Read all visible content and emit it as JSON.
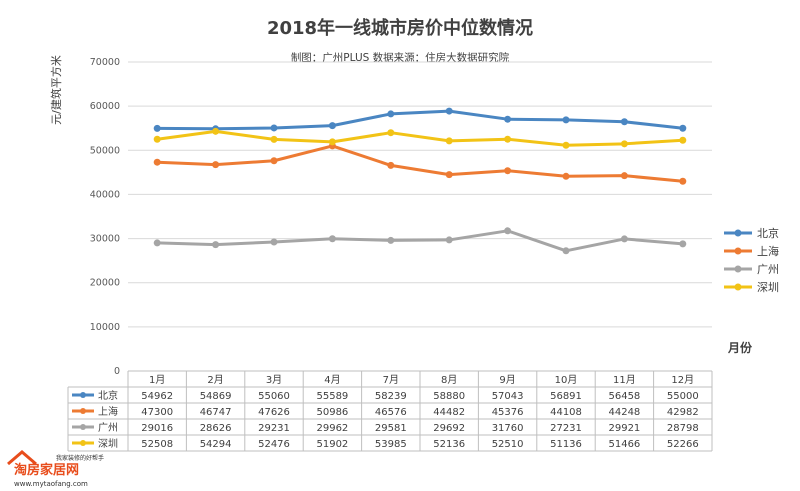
{
  "chart_data": {
    "type": "line",
    "title": "2018年一线城市房价中位数情况",
    "subtitle": "制图：广州PLUS  数据来源：住房大数据研究院",
    "ylabel": "元/建筑平方米",
    "xlabel": "月份",
    "ylim": [
      0,
      70000
    ],
    "yticks": [
      "0",
      "10000",
      "20000",
      "30000",
      "40000",
      "50000",
      "60000",
      "70000"
    ],
    "categories": [
      "1月",
      "2月",
      "3月",
      "4月",
      "7月",
      "8月",
      "9月",
      "10月",
      "11月",
      "12月"
    ],
    "legend_position": "right",
    "series": [
      {
        "name": "北京",
        "color": "#4a86c2",
        "values": [
          54962,
          54869,
          55060,
          55589,
          58239,
          58880,
          57043,
          56891,
          56458,
          55000
        ]
      },
      {
        "name": "上海",
        "color": "#ed7b33",
        "values": [
          47300,
          46747,
          47626,
          50986,
          46576,
          44482,
          45376,
          44108,
          44248,
          42982
        ]
      },
      {
        "name": "广州",
        "color": "#a5a5a5",
        "values": [
          29016,
          28626,
          29231,
          29962,
          29581,
          29692,
          31760,
          27231,
          29921,
          28798
        ]
      },
      {
        "name": "深圳",
        "color": "#f2c316",
        "values": [
          52508,
          54294,
          52476,
          51902,
          53985,
          52136,
          52510,
          51136,
          51466,
          52266
        ]
      }
    ],
    "grid": true
  },
  "watermark": {
    "brand": "淘房家居网",
    "tagline": "我家装修的好帮手",
    "url": "www.mytaofang.com"
  }
}
